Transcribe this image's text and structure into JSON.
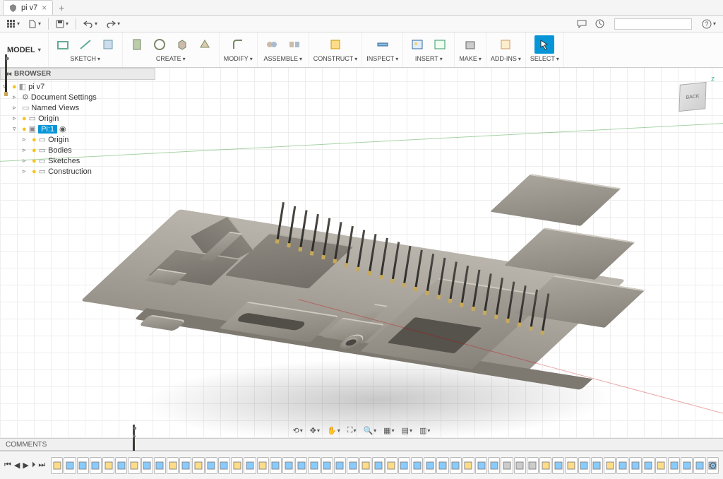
{
  "tab": {
    "title": "pi v7",
    "close": "×",
    "add": "+"
  },
  "quickbar": {
    "items": [
      "grid",
      "file",
      "save",
      "undo",
      "redo"
    ],
    "right_items": [
      "chat",
      "clock"
    ]
  },
  "ribbon": {
    "model_label": "MODEL",
    "groups": [
      {
        "label": "SKETCH",
        "icons": [
          "sketch-rect",
          "line",
          "plane"
        ]
      },
      {
        "label": "CREATE",
        "icons": [
          "extrude",
          "revolve",
          "box",
          "loft"
        ]
      },
      {
        "label": "MODIFY",
        "icons": [
          "fillet"
        ]
      },
      {
        "label": "ASSEMBLE",
        "icons": [
          "joint",
          "align"
        ]
      },
      {
        "label": "CONSTRUCT",
        "icons": [
          "plane2"
        ]
      },
      {
        "label": "INSPECT",
        "icons": [
          "measure"
        ]
      },
      {
        "label": "INSERT",
        "icons": [
          "image",
          "decal"
        ]
      },
      {
        "label": "MAKE",
        "icons": [
          "print"
        ]
      },
      {
        "label": "ADD-INS",
        "icons": [
          "addins"
        ]
      },
      {
        "label": "SELECT",
        "icons": [
          "select"
        ],
        "active": true
      }
    ]
  },
  "browser": {
    "title": "BROWSER",
    "tree": [
      {
        "level": 0,
        "arrow": "▿",
        "bulb": true,
        "icon": "cube",
        "label": "pi v7"
      },
      {
        "level": 1,
        "arrow": "▹",
        "icon": "gear",
        "label": "Document Settings"
      },
      {
        "level": 1,
        "arrow": "▹",
        "icon": "folder",
        "label": "Named Views"
      },
      {
        "level": 1,
        "arrow": "▹",
        "bulb": true,
        "icon": "folder",
        "label": "Origin"
      },
      {
        "level": 1,
        "arrow": "▿",
        "bulb": true,
        "icon": "comp",
        "label": "Pi:1",
        "selected": true,
        "ring": true
      },
      {
        "level": 2,
        "arrow": "▹",
        "bulb": true,
        "icon": "folder",
        "label": "Origin"
      },
      {
        "level": 2,
        "arrow": "▹",
        "bulb": true,
        "icon": "folder",
        "label": "Bodies"
      },
      {
        "level": 2,
        "arrow": "▹",
        "bulb": true,
        "icon": "folder",
        "label": "Sketches"
      },
      {
        "level": 2,
        "arrow": "▹",
        "bulb": true,
        "icon": "folder",
        "label": "Construction"
      }
    ]
  },
  "viewcube": {
    "face": "BACK",
    "axis_top": "Z",
    "axis_bottom": ""
  },
  "comments": {
    "label": "COMMENTS"
  },
  "nav_toolbar": [
    "orbit",
    "pan",
    "hand",
    "zoom-fit",
    "zoom",
    "display",
    "grid-disp",
    "viewports"
  ],
  "timeline": {
    "controls": [
      "⏮",
      "◀",
      "▶",
      "⏵",
      "⏭"
    ],
    "items_count": 52
  },
  "help": "?"
}
